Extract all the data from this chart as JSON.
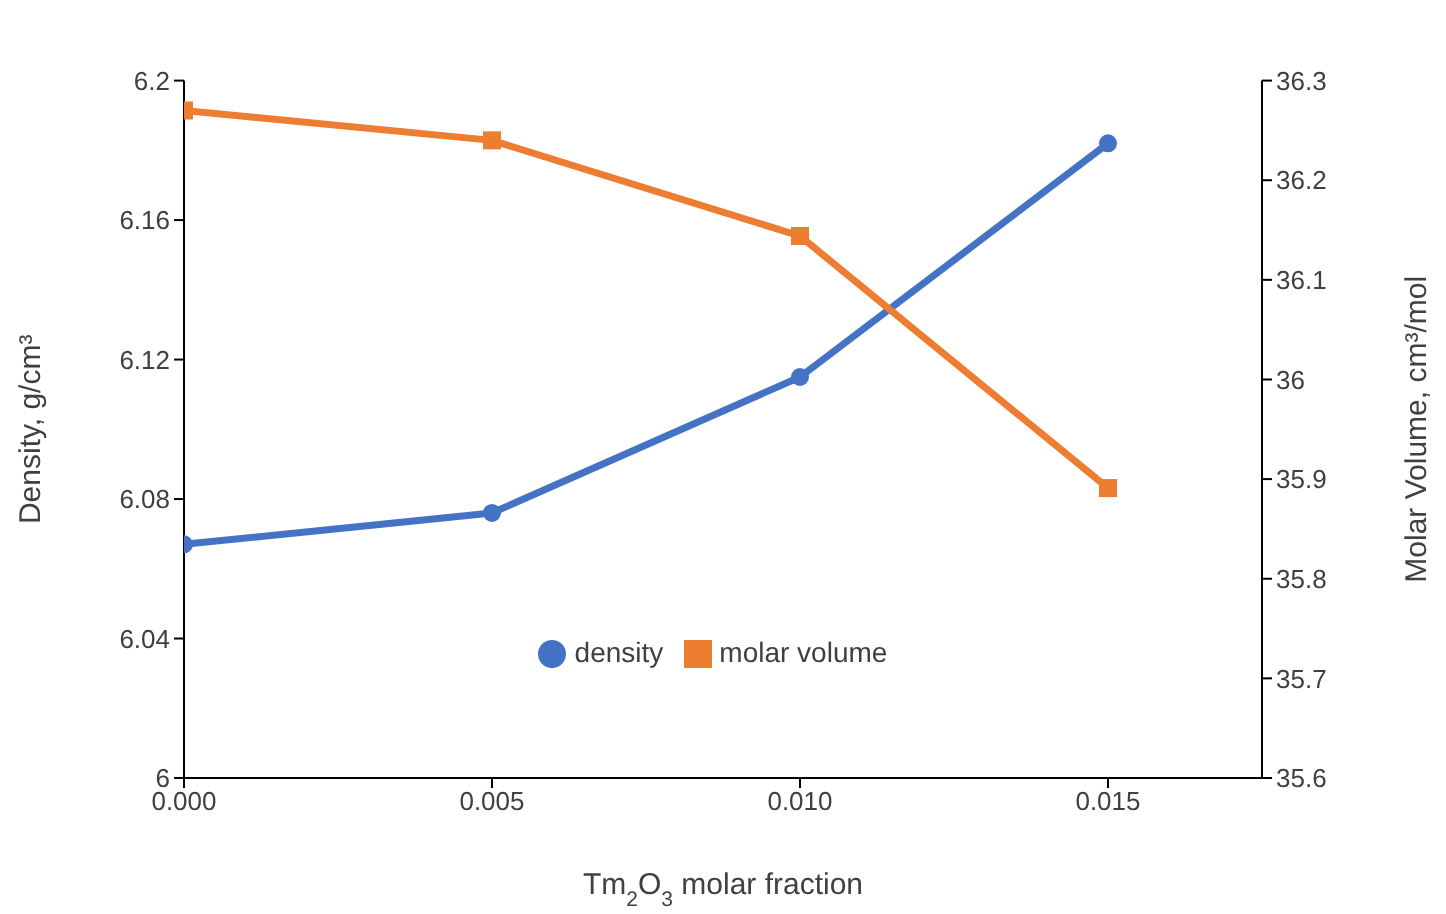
{
  "chart_data": {
    "type": "line",
    "xlabel": "Tm$_{2}$O$_{3}$ molar fraction",
    "ylabel": "Density, g/cm³",
    "y2label": "Molar Volume, cm³/mol",
    "x": [
      0,
      0.005,
      0.01,
      0.015
    ],
    "series": [
      {
        "name": "density",
        "color": "#4472c4",
        "values": [
          6.067,
          6.076,
          6.115,
          6.182
        ],
        "marker": "circle"
      },
      {
        "name": "molar volume",
        "color": "#ed7d31",
        "values": [
          36.27,
          36.24,
          36.144,
          35.891
        ],
        "marker": "square",
        "axis": "y2"
      }
    ],
    "xlim": [
      0,
      0.0175
    ],
    "xticks": [
      {
        "value": 0,
        "label": "0.000"
      },
      {
        "value": 0.005,
        "label": "0.005"
      },
      {
        "value": 0.01,
        "label": "0.010"
      },
      {
        "value": 0.015,
        "label": "0.015"
      }
    ],
    "ylim": [
      6,
      6.2
    ],
    "yticks": [
      6,
      6.04,
      6.08,
      6.12,
      6.16,
      6.2
    ],
    "y2lim": [
      35.6,
      36.3
    ],
    "y2ticks": [
      35.6,
      35.7,
      35.8,
      35.9,
      36,
      36.1,
      36.2,
      36.3
    ],
    "legend": "bottom",
    "grid": false,
    "line_style": "solid"
  }
}
